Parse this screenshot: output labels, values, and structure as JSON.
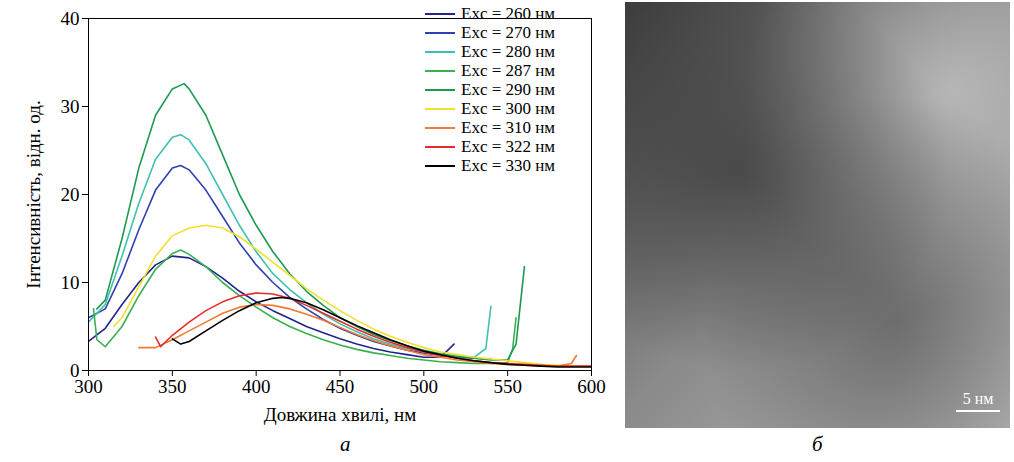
{
  "chart_data": {
    "type": "line",
    "panel_label": "а",
    "x_label": "Довжина хвилі, нм",
    "y_label": "Інтенсивність, відн. од.",
    "xlim": [
      300,
      600
    ],
    "ylim": [
      0,
      40
    ],
    "xticks": [
      300,
      350,
      400,
      450,
      500,
      550,
      600
    ],
    "yticks": [
      0,
      10,
      20,
      30,
      40
    ],
    "legend": "upper right",
    "series": [
      {
        "name": "Exc = 260 нм",
        "color": "#23248c",
        "x": [
          300,
          310,
          320,
          330,
          340,
          350,
          360,
          370,
          380,
          390,
          400,
          410,
          420,
          430,
          440,
          450,
          460,
          470,
          480,
          490,
          500,
          510,
          518
        ],
        "values": [
          3.3,
          4.8,
          7.5,
          10,
          12,
          13,
          12.8,
          11.8,
          10.5,
          9,
          7.8,
          6.8,
          5.9,
          5.0,
          4.3,
          3.6,
          3.0,
          2.5,
          2.1,
          1.8,
          1.5,
          1.5,
          3.0
        ]
      },
      {
        "name": "Exc = 270 нм",
        "color": "#3040b0",
        "x": [
          300,
          310,
          320,
          330,
          340,
          350,
          355,
          360,
          370,
          380,
          390,
          400,
          410,
          420,
          430,
          440,
          450,
          460,
          470,
          480,
          490,
          500,
          510,
          520,
          530,
          540
        ],
        "values": [
          6,
          7,
          11,
          16,
          20.5,
          23,
          23.3,
          22.8,
          20.5,
          17.5,
          14.5,
          12,
          10,
          8.3,
          7,
          5.8,
          4.8,
          4.0,
          3.3,
          2.8,
          2.3,
          2.0,
          1.7,
          1.5,
          1.4,
          1.3
        ]
      },
      {
        "name": "Exc = 280 нм",
        "color": "#40c0b0",
        "x": [
          300,
          310,
          320,
          330,
          340,
          350,
          355,
          360,
          370,
          380,
          390,
          400,
          410,
          420,
          430,
          440,
          450,
          460,
          470,
          480,
          490,
          500,
          510,
          520,
          530,
          537,
          540
        ],
        "values": [
          5.5,
          7.5,
          13,
          19,
          24,
          26.5,
          26.8,
          26.2,
          23.5,
          20,
          16.5,
          13.5,
          11,
          9.2,
          7.7,
          6.4,
          5.3,
          4.4,
          3.6,
          3.0,
          2.5,
          2.1,
          1.8,
          1.6,
          1.5,
          2.5,
          7.3
        ]
      },
      {
        "name": "Exc = 287 нм",
        "color": "#3cb050",
        "x": [
          303,
          305,
          310,
          320,
          330,
          340,
          350,
          355,
          360,
          370,
          380,
          390,
          400,
          410,
          420,
          430,
          440,
          450,
          460,
          470,
          480,
          490,
          500,
          510,
          520,
          530,
          540,
          550,
          553,
          555
        ],
        "values": [
          7,
          3.5,
          2.7,
          5,
          8.5,
          11.5,
          13.3,
          13.7,
          13.2,
          11.8,
          10,
          8.5,
          7.2,
          6.0,
          5.0,
          4.2,
          3.5,
          2.9,
          2.4,
          2.0,
          1.7,
          1.4,
          1.2,
          1.0,
          0.9,
          0.8,
          0.8,
          0.9,
          2.5,
          6.0
        ]
      },
      {
        "name": "Exc = 290 нм",
        "color": "#1e9a50",
        "x": [
          305,
          310,
          320,
          330,
          340,
          350,
          357,
          360,
          370,
          380,
          390,
          400,
          410,
          420,
          430,
          440,
          450,
          460,
          470,
          480,
          490,
          500,
          510,
          520,
          530,
          540,
          550,
          555,
          560
        ],
        "values": [
          7,
          8,
          15,
          23,
          29,
          32,
          32.6,
          32,
          29,
          24.5,
          20,
          16.5,
          13.5,
          11,
          9,
          7.4,
          6,
          5,
          4.1,
          3.4,
          2.8,
          2.3,
          1.9,
          1.6,
          1.4,
          1.2,
          1.2,
          3,
          11.8
        ]
      },
      {
        "name": "Exc = 300 нм",
        "color": "#f0e030",
        "x": [
          315,
          320,
          330,
          340,
          350,
          360,
          370,
          380,
          390,
          400,
          410,
          420,
          430,
          440,
          450,
          460,
          470,
          480,
          490,
          500,
          510,
          520,
          530,
          540,
          550,
          560,
          570,
          580,
          590,
          600
        ],
        "values": [
          5,
          6,
          9.5,
          13,
          15.3,
          16.2,
          16.5,
          16.2,
          15.2,
          13.8,
          12.3,
          10.8,
          9.3,
          8,
          6.8,
          5.7,
          4.7,
          3.9,
          3.2,
          2.6,
          2.1,
          1.8,
          1.5,
          1.3,
          1.1,
          0.9,
          0.7,
          0.6,
          0.5,
          0.5
        ]
      },
      {
        "name": "Exc = 310 нм",
        "color": "#f07a30",
        "x": [
          330,
          340,
          350,
          360,
          370,
          380,
          390,
          400,
          410,
          420,
          430,
          440,
          450,
          460,
          470,
          480,
          490,
          500,
          510,
          520,
          530,
          540,
          550,
          560,
          570,
          580,
          588,
          591
        ],
        "values": [
          2.6,
          2.6,
          3.5,
          4.5,
          5.5,
          6.5,
          7.2,
          7.5,
          7.4,
          7.0,
          6.4,
          5.7,
          4.9,
          4.1,
          3.4,
          2.8,
          2.3,
          1.8,
          1.5,
          1.2,
          1.0,
          0.8,
          0.7,
          0.6,
          0.5,
          0.5,
          0.8,
          1.7
        ]
      },
      {
        "name": "Exc = 322 нм",
        "color": "#e52d2d",
        "x": [
          340,
          343,
          350,
          360,
          370,
          380,
          390,
          400,
          410,
          420,
          430,
          440,
          450,
          460,
          470,
          480,
          490,
          500,
          510,
          520,
          530,
          540,
          550,
          560,
          570,
          580,
          590,
          600
        ],
        "values": [
          3.8,
          2.7,
          4,
          5.5,
          6.8,
          7.8,
          8.5,
          8.8,
          8.7,
          8.2,
          7.4,
          6.5,
          5.6,
          4.7,
          3.9,
          3.2,
          2.6,
          2.1,
          1.7,
          1.4,
          1.1,
          0.9,
          0.8,
          0.7,
          0.6,
          0.5,
          0.5,
          0.5
        ]
      },
      {
        "name": "Exc = 330 нм",
        "color": "#000000",
        "x": [
          350,
          355,
          360,
          370,
          380,
          390,
          400,
          410,
          415,
          420,
          430,
          440,
          450,
          460,
          470,
          480,
          490,
          500,
          510,
          520,
          530,
          540,
          550,
          560,
          570,
          580,
          590,
          600
        ],
        "values": [
          3.6,
          3.0,
          3.3,
          4.5,
          5.7,
          6.8,
          7.7,
          8.2,
          8.3,
          8.2,
          7.7,
          6.9,
          6.0,
          5.1,
          4.3,
          3.5,
          2.8,
          2.2,
          1.8,
          1.4,
          1.1,
          0.9,
          0.7,
          0.6,
          0.5,
          0.4,
          0.4,
          0.4
        ]
      }
    ]
  },
  "image": {
    "panel_label": "б",
    "scale_bar": "5 нм"
  }
}
